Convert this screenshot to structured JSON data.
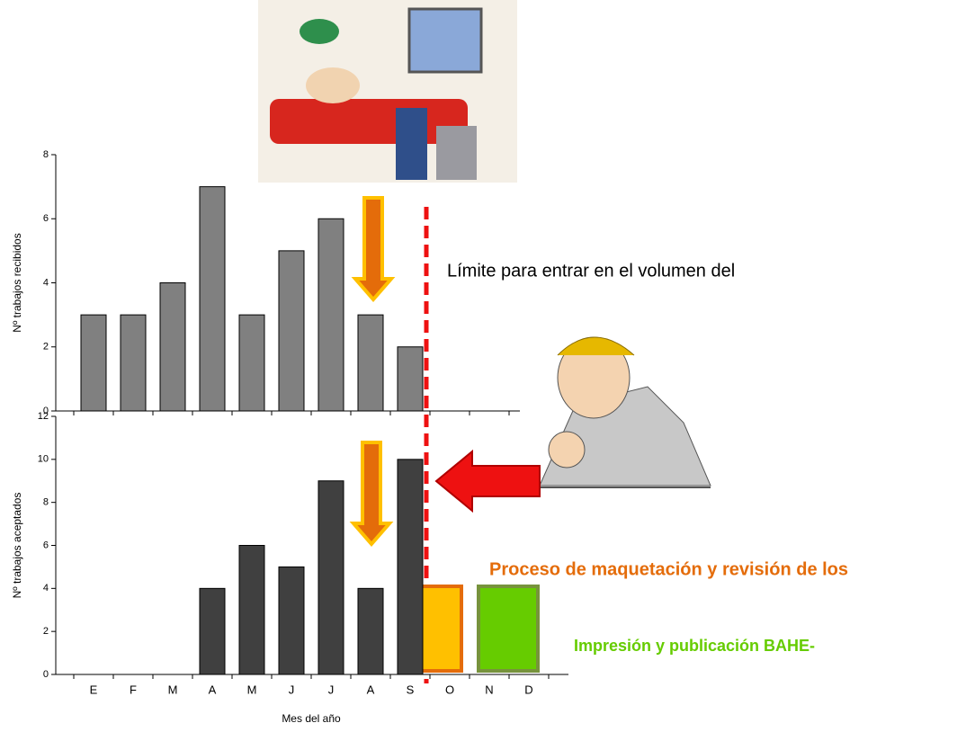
{
  "chart_data": [
    {
      "type": "bar",
      "y_label": "Nº trabajos recibidos",
      "values": [
        3,
        3,
        4,
        7,
        3,
        5,
        6,
        3,
        2,
        null,
        null,
        null
      ],
      "color": "#808080",
      "ylim": [
        0,
        8
      ],
      "yticks": [
        0,
        2,
        4,
        6,
        8
      ]
    },
    {
      "type": "bar",
      "y_label": "Nº trabajos aceptados",
      "x_label": "Mes del año",
      "categories": [
        "E",
        "F",
        "M",
        "A",
        "M",
        "J",
        "J",
        "A",
        "S",
        "O",
        "N",
        "D"
      ],
      "values": [
        0,
        0,
        0,
        4,
        6,
        5,
        9,
        4,
        10,
        null,
        null,
        null
      ],
      "color": "#404040",
      "ylim": [
        0,
        12
      ],
      "yticks": [
        0,
        2,
        4,
        6,
        8,
        10,
        12
      ]
    }
  ],
  "annotations": [
    "Límite para entrar en el volumen del",
    "Proceso de maquetación y revisión de los",
    "Impresión y publicación BAHE-"
  ]
}
